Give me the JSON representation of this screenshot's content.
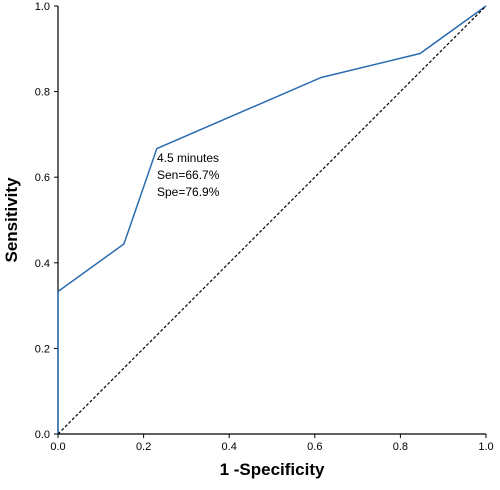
{
  "chart_data": {
    "type": "line",
    "xlabel": "1 -Specificity",
    "ylabel": "Sensitivity",
    "xlim": [
      0,
      1
    ],
    "ylim": [
      0,
      1
    ],
    "x_ticks": [
      "0.0",
      "0.2",
      "0.4",
      "0.6",
      "0.8",
      "1.0"
    ],
    "y_ticks": [
      "0.0",
      "0.2",
      "0.4",
      "0.6",
      "0.8",
      "1.0"
    ],
    "grid": false,
    "series": [
      {
        "style": "solid",
        "color": "#2a6bb0",
        "x": [
          0.0,
          0.0,
          0.154,
          0.231,
          0.615,
          0.846,
          1.0
        ],
        "y": [
          0.0,
          0.333,
          0.444,
          0.667,
          0.833,
          0.889,
          1.0
        ]
      },
      {
        "style": "dashed",
        "color": "#000000",
        "x": [
          0.0,
          1.0
        ],
        "y": [
          0.0,
          1.0
        ]
      }
    ],
    "annotations": [
      "4.5 minutes",
      "Sen=66.7%",
      "Spe=76.9%"
    ]
  }
}
